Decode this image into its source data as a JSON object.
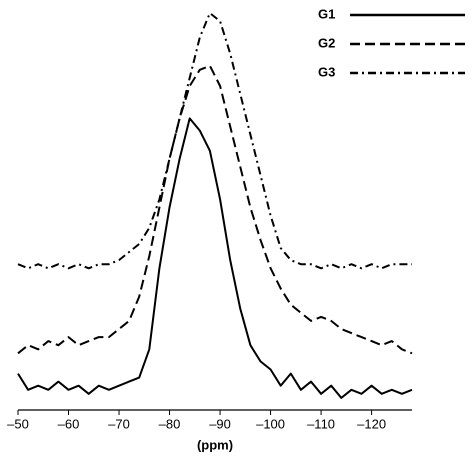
{
  "chart_data": {
    "type": "line",
    "xlabel": "(ppm)",
    "legend": "upper right",
    "x": [
      -50,
      -52,
      -54,
      -56,
      -58,
      -60,
      -62,
      -64,
      -66,
      -68,
      -70,
      -72,
      -74,
      -76,
      -78,
      -80,
      -82,
      -84,
      -86,
      -88,
      -90,
      -92,
      -94,
      -96,
      -98,
      -100,
      -102,
      -104,
      -106,
      -108,
      -110,
      -112,
      -114,
      -116,
      -118,
      -120,
      -122,
      -124,
      -126,
      -128
    ],
    "series": [
      {
        "name": "G1",
        "color": "#000000",
        "linestyle": "solid",
        "values": [
          9,
          5,
          6,
          5,
          7,
          5,
          6,
          4,
          6,
          5,
          6,
          7,
          8,
          15,
          35,
          50,
          62,
          72,
          69,
          64,
          52,
          37,
          25,
          16,
          12,
          10,
          6,
          9,
          5,
          7,
          4,
          6,
          3,
          5,
          4,
          6,
          4,
          5,
          4,
          5
        ]
      },
      {
        "name": "G2",
        "color": "#000000",
        "linestyle": "dashed",
        "values": [
          14,
          16,
          15,
          17,
          16,
          18,
          16,
          17,
          18,
          18,
          20,
          22,
          28,
          38,
          50,
          62,
          72,
          80,
          84,
          85,
          80,
          70,
          60,
          50,
          42,
          35,
          30,
          26,
          24,
          22,
          23,
          22,
          20,
          19,
          18,
          17,
          16,
          17,
          15,
          14
        ]
      },
      {
        "name": "G3",
        "color": "#000000",
        "linestyle": "dashdot",
        "values": [
          36,
          35,
          36,
          35,
          36,
          35,
          36,
          35,
          36,
          36,
          37,
          39,
          41,
          45,
          52,
          62,
          72,
          82,
          92,
          98,
          96,
          88,
          78,
          68,
          58,
          48,
          40,
          37,
          36,
          36,
          35,
          36,
          35,
          36,
          35,
          36,
          35,
          36,
          36,
          36
        ]
      }
    ],
    "xlim": [
      -50,
      -128
    ],
    "ylim": [
      0,
      100
    ],
    "xticks": [
      {
        "value": -50,
        "label": "–50"
      },
      {
        "value": -60,
        "label": "–60"
      },
      {
        "value": -70,
        "label": "–70"
      },
      {
        "value": -80,
        "label": "–80"
      },
      {
        "value": -90,
        "label": "–90"
      },
      {
        "value": -100,
        "label": "–100"
      },
      {
        "value": -110,
        "label": "–110"
      },
      {
        "value": -120,
        "label": "–120"
      }
    ]
  }
}
